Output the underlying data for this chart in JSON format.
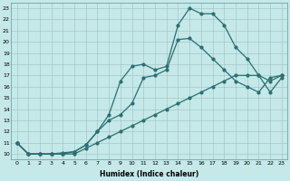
{
  "xlabel": "Humidex (Indice chaleur)",
  "background_color": "#c5e8e8",
  "line_color": "#2a7070",
  "grid_color": "#9fbfbf",
  "xlim": [
    -0.5,
    23.5
  ],
  "ylim": [
    9.5,
    23.5
  ],
  "xticks": [
    0,
    1,
    2,
    3,
    4,
    5,
    6,
    7,
    8,
    9,
    10,
    11,
    12,
    13,
    14,
    15,
    16,
    17,
    18,
    19,
    20,
    21,
    22,
    23
  ],
  "yticks": [
    10,
    11,
    12,
    13,
    14,
    15,
    16,
    17,
    18,
    19,
    20,
    21,
    22,
    23
  ],
  "line1_x": [
    0,
    1,
    2,
    3,
    4,
    5,
    6,
    7,
    8,
    9,
    10,
    11,
    12,
    13,
    14,
    15,
    16,
    17,
    18,
    19,
    20,
    21,
    22,
    23
  ],
  "line1_y": [
    11.0,
    10.0,
    10.0,
    10.0,
    10.0,
    10.0,
    10.5,
    11.0,
    11.5,
    12.0,
    12.5,
    13.0,
    13.5,
    14.0,
    14.5,
    15.0,
    15.5,
    16.0,
    16.5,
    17.0,
    17.0,
    17.0,
    16.5,
    17.0
  ],
  "line2_x": [
    0,
    1,
    2,
    3,
    4,
    5,
    6,
    7,
    8,
    9,
    10,
    11,
    12,
    13,
    14,
    15,
    16,
    17,
    18,
    19,
    20,
    21,
    22,
    23
  ],
  "line2_y": [
    11.0,
    10.0,
    10.0,
    10.0,
    10.0,
    10.2,
    10.8,
    12.0,
    13.0,
    13.5,
    14.5,
    16.8,
    17.0,
    17.5,
    20.2,
    20.3,
    19.5,
    18.5,
    17.5,
    16.5,
    16.0,
    15.5,
    16.8,
    17.0
  ],
  "line3_x": [
    0,
    1,
    2,
    3,
    4,
    5,
    6,
    7,
    8,
    9,
    10,
    11,
    12,
    13,
    14,
    15,
    16,
    17,
    18,
    19,
    20,
    21,
    22,
    23
  ],
  "line3_y": [
    11.0,
    10.0,
    10.0,
    10.0,
    10.1,
    10.2,
    10.8,
    12.0,
    13.5,
    16.5,
    17.8,
    18.0,
    17.5,
    17.8,
    21.5,
    23.0,
    22.5,
    22.5,
    21.5,
    19.5,
    18.5,
    17.0,
    15.5,
    16.8
  ]
}
